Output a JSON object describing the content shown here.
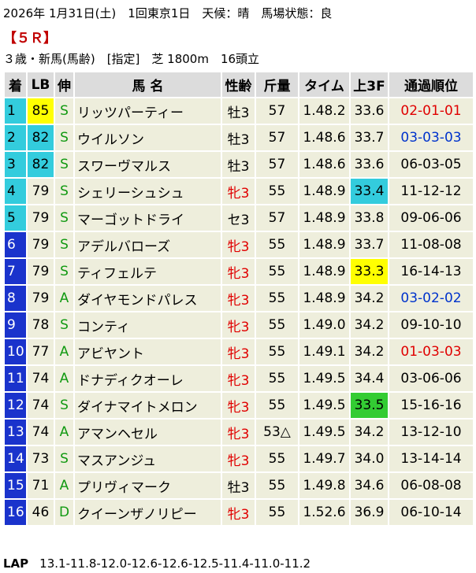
{
  "header": {
    "line1": "2026年 1月31日(土)　1回東京1日　天候：晴　馬場状態：良",
    "race": "【５Ｒ】",
    "line3": "３歳・新馬(馬齢)　[指定]　芝 1800m　16頭立"
  },
  "table": {
    "columns": [
      "着",
      "LB",
      "伸",
      "馬 名",
      "性齢",
      "斤量",
      "タイム",
      "上3F",
      "通過順位"
    ],
    "rows": [
      {
        "rank": 1,
        "lb": 85,
        "nobi": "S",
        "name": "リッツパーティー",
        "sex": "牡3",
        "weight": 57,
        "time": "1.48.2",
        "f3": "33.6",
        "pass": "02-01-01",
        "rank_bg": "#33ccdd",
        "lb_bg": "#ffff00",
        "pass_color": "#e00000"
      },
      {
        "rank": 2,
        "lb": 82,
        "nobi": "S",
        "name": "ウイルソン",
        "sex": "牡3",
        "weight": 57,
        "time": "1.48.6",
        "f3": "33.7",
        "pass": "03-03-03",
        "rank_bg": "#33ccdd",
        "lb_bg": "#33ccdd",
        "pass_color": "#0033cc"
      },
      {
        "rank": 3,
        "lb": 82,
        "nobi": "S",
        "name": "スワーヴマルス",
        "sex": "牡3",
        "weight": 57,
        "time": "1.48.6",
        "f3": "33.6",
        "pass": "06-03-05",
        "rank_bg": "#33ccdd",
        "lb_bg": "#33ccdd"
      },
      {
        "rank": 4,
        "lb": 79,
        "nobi": "S",
        "name": "シェリーシュシュ",
        "sex": "牝3",
        "weight": 55,
        "time": "1.48.9",
        "f3": "33.4",
        "pass": "11-12-12",
        "rank_bg": "#33ccdd",
        "sex_color": "#e00000",
        "f3_bg": "#33ccdd"
      },
      {
        "rank": 5,
        "lb": 79,
        "nobi": "S",
        "name": "マーゴットドライ",
        "sex": "セ3",
        "weight": 57,
        "time": "1.48.9",
        "f3": "33.8",
        "pass": "09-06-06",
        "rank_bg": "#33ccdd"
      },
      {
        "rank": 6,
        "lb": 79,
        "nobi": "S",
        "name": "アデルバローズ",
        "sex": "牝3",
        "weight": 55,
        "time": "1.48.9",
        "f3": "33.7",
        "pass": "11-08-08",
        "rank_bg": "#1a33cc",
        "sex_color": "#e00000"
      },
      {
        "rank": 7,
        "lb": 79,
        "nobi": "S",
        "name": "ティフェルテ",
        "sex": "牝3",
        "weight": 55,
        "time": "1.48.9",
        "f3": "33.3",
        "pass": "16-14-13",
        "rank_bg": "#1a33cc",
        "sex_color": "#e00000",
        "f3_bg": "#ffff00"
      },
      {
        "rank": 8,
        "lb": 79,
        "nobi": "A",
        "name": "ダイヤモンドパレス",
        "sex": "牝3",
        "weight": 55,
        "time": "1.48.9",
        "f3": "34.2",
        "pass": "03-02-02",
        "rank_bg": "#1a33cc",
        "sex_color": "#e00000",
        "pass_color": "#0033cc"
      },
      {
        "rank": 9,
        "lb": 78,
        "nobi": "S",
        "name": "コンティ",
        "sex": "牝3",
        "weight": 55,
        "time": "1.49.0",
        "f3": "34.2",
        "pass": "09-10-10",
        "rank_bg": "#1a33cc",
        "sex_color": "#e00000"
      },
      {
        "rank": 10,
        "lb": 77,
        "nobi": "A",
        "name": "アビヤント",
        "sex": "牝3",
        "weight": 55,
        "time": "1.49.1",
        "f3": "34.2",
        "pass": "01-03-03",
        "rank_bg": "#1a33cc",
        "sex_color": "#e00000",
        "pass_color": "#e00000"
      },
      {
        "rank": 11,
        "lb": 74,
        "nobi": "A",
        "name": "ドナディクオーレ",
        "sex": "牝3",
        "weight": 55,
        "time": "1.49.5",
        "f3": "34.4",
        "pass": "03-06-06",
        "rank_bg": "#1a33cc",
        "sex_color": "#e00000"
      },
      {
        "rank": 12,
        "lb": 74,
        "nobi": "S",
        "name": "ダイナマイトメロン",
        "sex": "牝3",
        "weight": 55,
        "time": "1.49.5",
        "f3": "33.5",
        "pass": "15-16-16",
        "rank_bg": "#1a33cc",
        "sex_color": "#e00000",
        "f3_bg": "#33cc33"
      },
      {
        "rank": 13,
        "lb": 74,
        "nobi": "A",
        "name": "アマンヘセル",
        "sex": "牝3",
        "weight": "53△",
        "time": "1.49.5",
        "f3": "34.2",
        "pass": "13-12-10",
        "rank_bg": "#1a33cc",
        "sex_color": "#e00000"
      },
      {
        "rank": 14,
        "lb": 73,
        "nobi": "S",
        "name": "マスアンジュ",
        "sex": "牝3",
        "weight": 55,
        "time": "1.49.7",
        "f3": "34.0",
        "pass": "13-14-14",
        "rank_bg": "#1a33cc",
        "sex_color": "#e00000"
      },
      {
        "rank": 15,
        "lb": 71,
        "nobi": "A",
        "name": "プリヴィマーク",
        "sex": "牡3",
        "weight": 55,
        "time": "1.49.8",
        "f3": "34.6",
        "pass": "06-08-08",
        "rank_bg": "#1a33cc"
      },
      {
        "rank": 16,
        "lb": 46,
        "nobi": "D",
        "name": "クイーンザノリピー",
        "sex": "牝3",
        "weight": 55,
        "time": "1.52.6",
        "f3": "36.9",
        "pass": "06-10-14",
        "rank_bg": "#1a33cc",
        "sex_color": "#e00000"
      }
    ]
  },
  "footer": {
    "label": "LAP",
    "laps": "13.1-11.8-12.0-12.6-12.6-12.5-11.4-11.0-11.2"
  }
}
